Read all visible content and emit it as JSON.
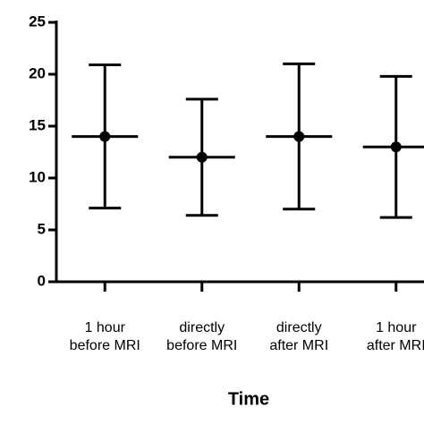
{
  "chart_data": {
    "type": "errorbar",
    "xlabel": "Time",
    "categories": [
      [
        "1 hour",
        "before MRI"
      ],
      [
        "directly",
        "before MRI"
      ],
      [
        "directly",
        "after MRI"
      ],
      [
        "1 hour",
        "after MRI"
      ]
    ],
    "values": [
      14,
      12,
      14,
      13
    ],
    "errors": [
      6.9,
      5.6,
      7,
      6.8
    ],
    "color": "#000000",
    "ylim": [
      0,
      25
    ],
    "yticks": [
      0,
      5,
      10,
      15,
      20,
      25
    ]
  }
}
